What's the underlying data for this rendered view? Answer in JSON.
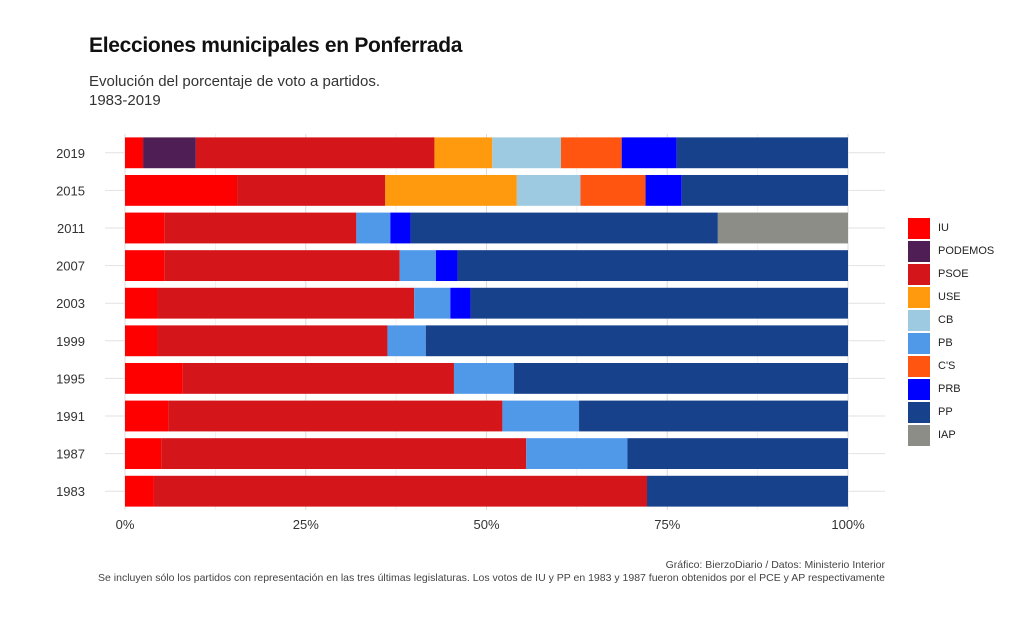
{
  "title": "Elecciones municipales en Ponferrada",
  "subtitle": [
    "Evolución del porcentaje de voto a partidos.",
    "1983-2019"
  ],
  "caption": {
    "source": "Gráfico: BierzoDiario / Datos: Ministerio Interior",
    "note": "Se incluyen sólo los partidos con representación en las tres últimas legislaturas. Los votos de IU y PP en 1983 y 1987 fueron obtenidos por el PCE y AP respectivamente"
  },
  "legend": [
    {
      "label": "IU",
      "color": "#FF0000"
    },
    {
      "label": "PODEMOS",
      "color": "#4F1E55"
    },
    {
      "label": "PSOE",
      "color": "#D4161A"
    },
    {
      "label": "USE",
      "color": "#FF9A0F"
    },
    {
      "label": "CB",
      "color": "#9ECAE1"
    },
    {
      "label": "PB",
      "color": "#5099E9"
    },
    {
      "label": "C'S",
      "color": "#FF5511"
    },
    {
      "label": "PRB",
      "color": "#0000FF"
    },
    {
      "label": "PP",
      "color": "#17428B"
    },
    {
      "label": "IAP",
      "color": "#8D8D88"
    }
  ],
  "chart_data": {
    "type": "bar",
    "orientation": "horizontal",
    "stacked": "percent",
    "categories": [
      "2019",
      "2015",
      "2011",
      "2007",
      "2003",
      "1999",
      "1995",
      "1991",
      "1987",
      "1983"
    ],
    "xlim": [
      0,
      100
    ],
    "xticks": [
      "0%",
      "25%",
      "50%",
      "75%",
      "100%"
    ],
    "grid": true,
    "legend_position": "right",
    "series": [
      {
        "name": "IU",
        "values": [
          2.5,
          15.5,
          5.5,
          5.5,
          4.5,
          4.5,
          8.0,
          6.0,
          5.0,
          4.0
        ]
      },
      {
        "name": "PODEMOS",
        "values": [
          7.3,
          0,
          0,
          0,
          0,
          0,
          0,
          0,
          0,
          0
        ]
      },
      {
        "name": "PSOE",
        "values": [
          33.0,
          20.5,
          26.5,
          32.5,
          35.5,
          31.8,
          37.5,
          46.2,
          50.5,
          68.2
        ]
      },
      {
        "name": "USE",
        "values": [
          8.0,
          18.2,
          0,
          0,
          0,
          0,
          0,
          0,
          0,
          0
        ]
      },
      {
        "name": "CB",
        "values": [
          9.5,
          8.8,
          0,
          0,
          0,
          0,
          0,
          0,
          0,
          0
        ]
      },
      {
        "name": "PB",
        "values": [
          0,
          0,
          4.7,
          5.0,
          5.0,
          5.3,
          8.3,
          10.6,
          14.0,
          0
        ]
      },
      {
        "name": "C'S",
        "values": [
          8.4,
          9.0,
          0,
          0,
          0,
          0,
          0,
          0,
          0,
          0
        ]
      },
      {
        "name": "PRB",
        "values": [
          7.6,
          5.0,
          2.8,
          3.0,
          2.8,
          0,
          0,
          0,
          0,
          0
        ]
      },
      {
        "name": "PP",
        "values": [
          23.7,
          23.0,
          42.5,
          54.0,
          52.2,
          58.4,
          46.2,
          37.2,
          30.5,
          27.8
        ]
      },
      {
        "name": "IAP",
        "values": [
          0,
          0,
          18.0,
          0,
          0,
          0,
          0,
          0,
          0,
          0
        ]
      }
    ]
  }
}
